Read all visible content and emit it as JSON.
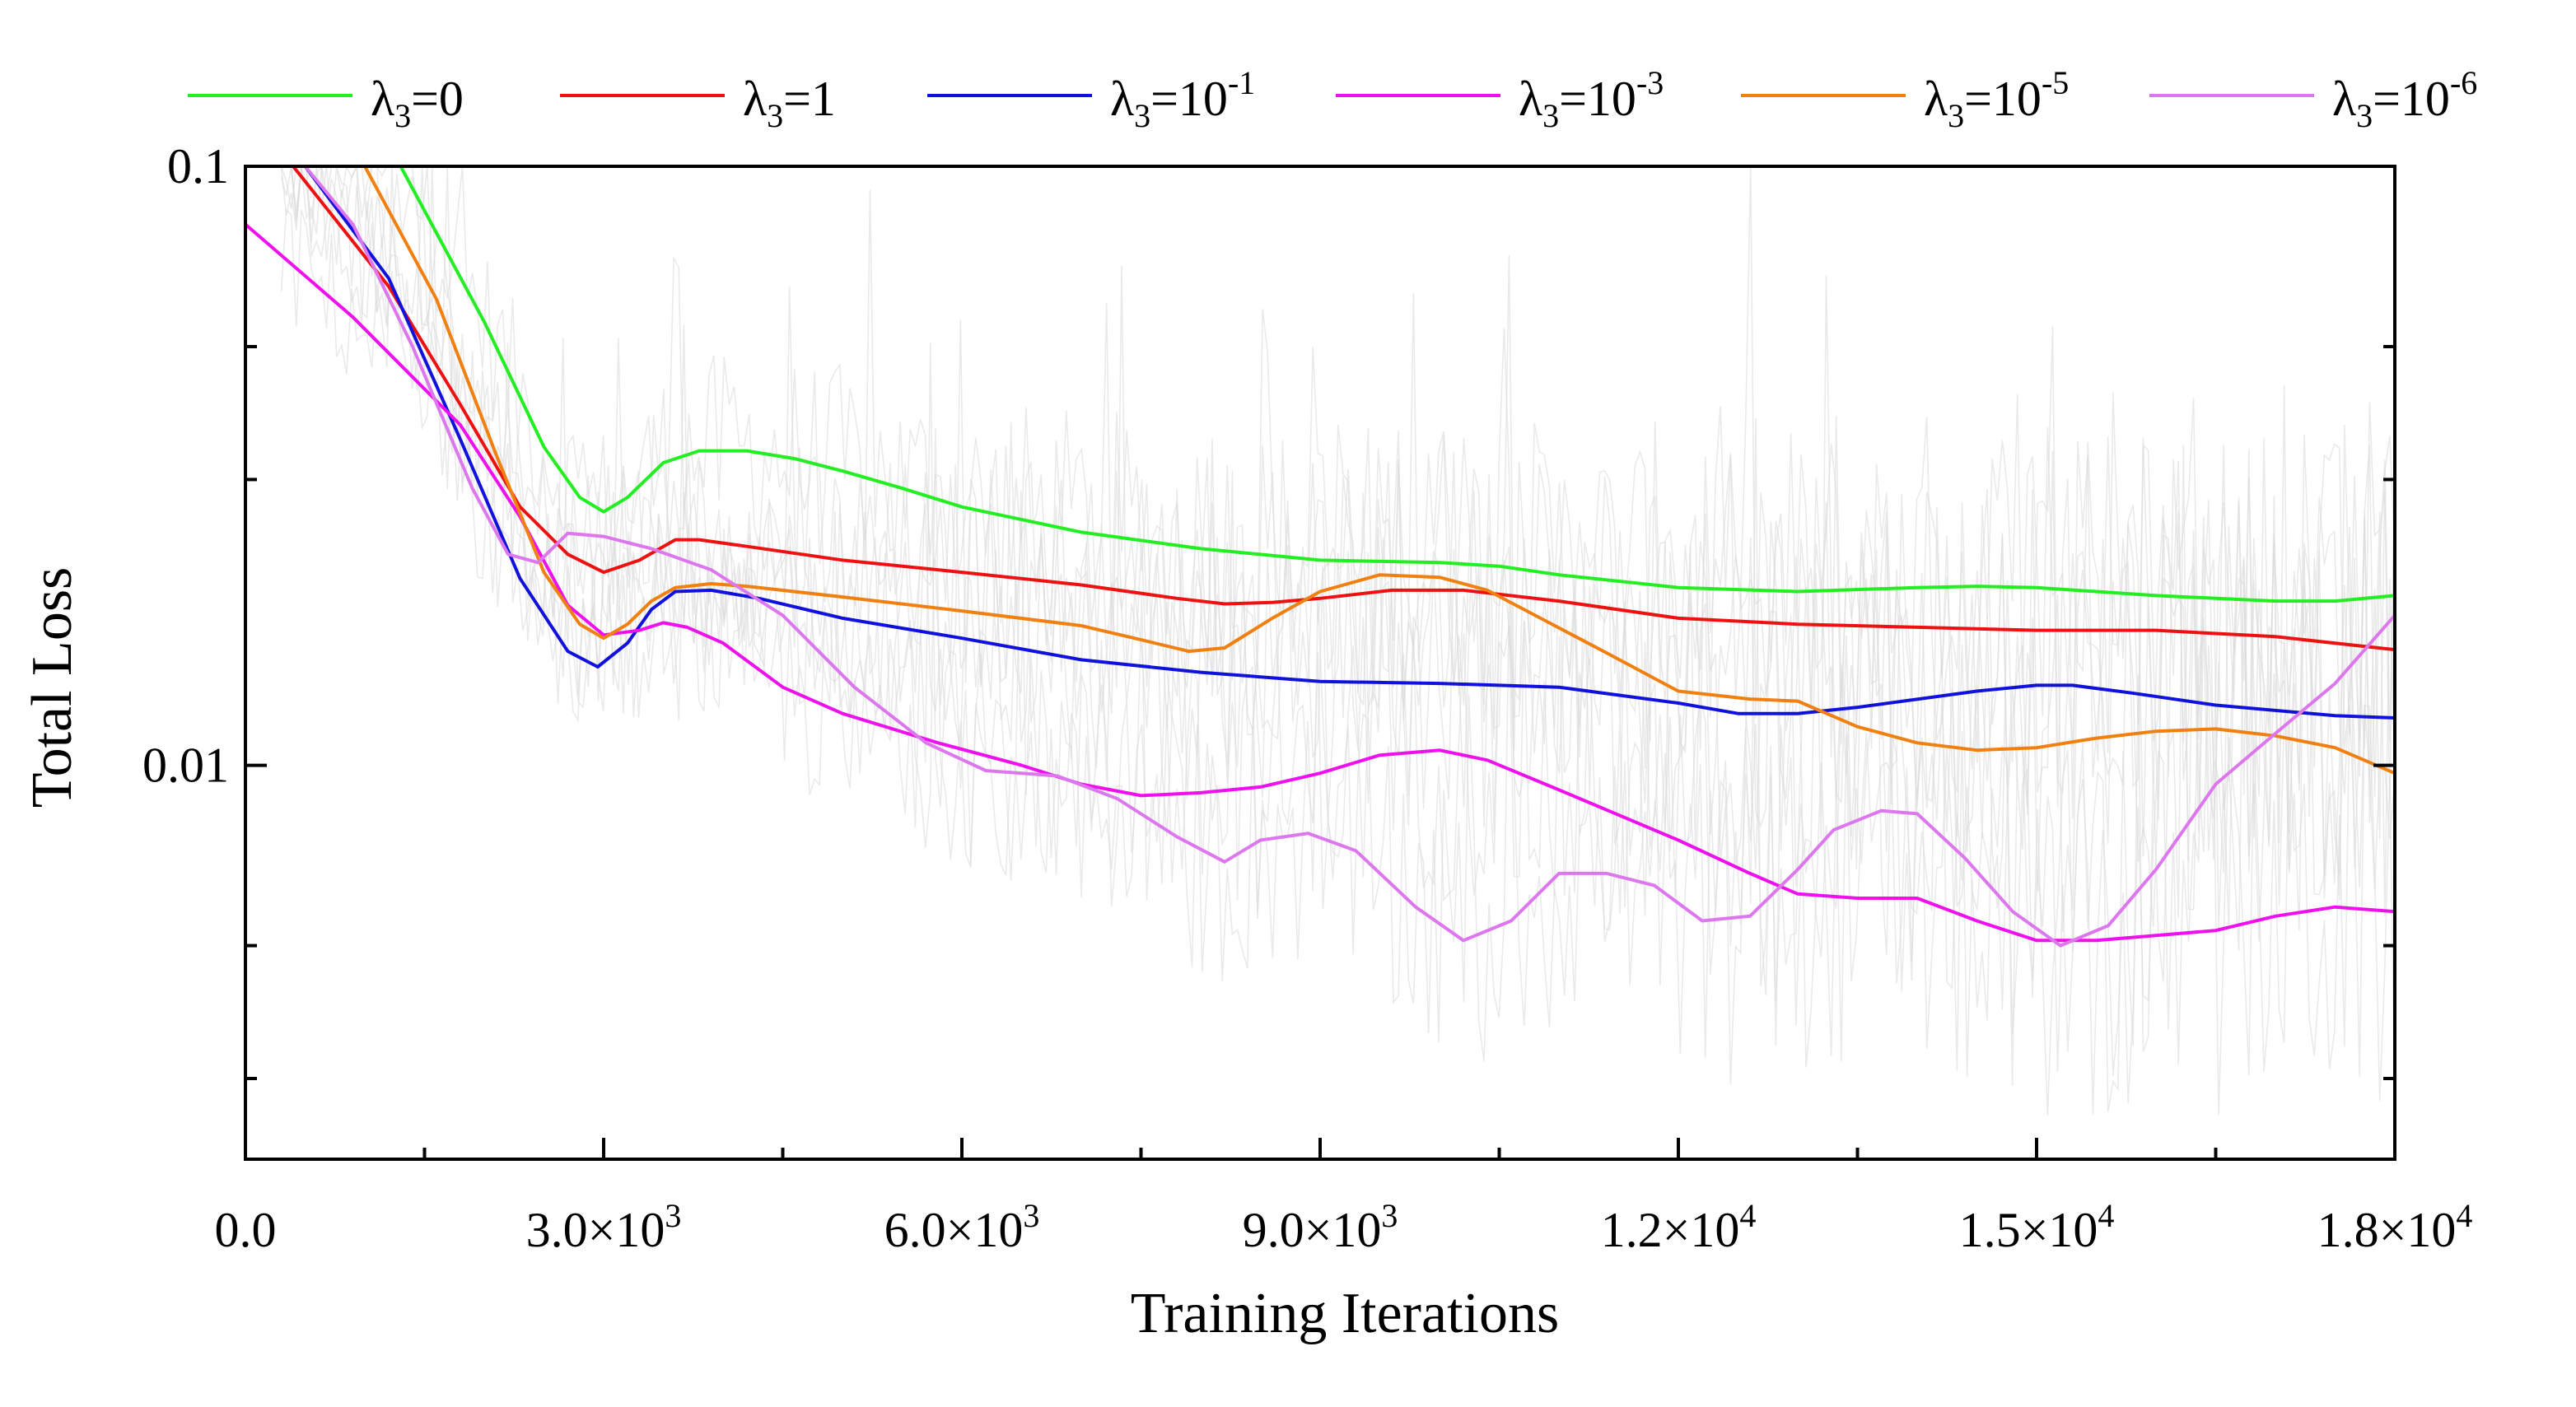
{
  "chart_data": {
    "type": "line",
    "title": "",
    "xlabel": "Training Iterations",
    "ylabel": "Total Loss",
    "xlim": [
      0,
      18000
    ],
    "ylim": [
      0.0022,
      0.1
    ],
    "yscale": "log",
    "grid": false,
    "legend_position": "top",
    "x_ticks": [
      {
        "value": 0,
        "label": "0.0",
        "base": "",
        "exp": ""
      },
      {
        "value": 3000,
        "label": "",
        "base": "3.0×10",
        "exp": "3"
      },
      {
        "value": 6000,
        "label": "",
        "base": "6.0×10",
        "exp": "3"
      },
      {
        "value": 9000,
        "label": "",
        "base": "9.0×10",
        "exp": "3"
      },
      {
        "value": 12000,
        "label": "",
        "base": "1.2×10",
        "exp": "4"
      },
      {
        "value": 15000,
        "label": "",
        "base": "1.5×10",
        "exp": "4"
      },
      {
        "value": 18000,
        "label": "",
        "base": "1.8×10",
        "exp": "4"
      }
    ],
    "y_ticks": [
      {
        "value": 0.1,
        "label": "0.1"
      },
      {
        "value": 0.01,
        "label": "0.01"
      }
    ],
    "series": [
      {
        "name": "λ3=0",
        "legend_base": "λ",
        "legend_sub": "3",
        "legend_rest": "=0",
        "legend_exp": "",
        "color": "#22ee22",
        "x": [
          0,
          1300,
          2000,
          2500,
          2800,
          3000,
          3200,
          3500,
          3800,
          4200,
          4600,
          5000,
          5500,
          6000,
          7000,
          8000,
          9000,
          10000,
          10500,
          11000,
          12000,
          13000,
          14000,
          14500,
          15000,
          16000,
          17000,
          17500,
          18000
        ],
        "values": [
          0.1,
          0.1,
          0.055,
          0.034,
          0.028,
          0.0265,
          0.028,
          0.032,
          0.0335,
          0.0335,
          0.0325,
          0.031,
          0.029,
          0.027,
          0.0245,
          0.023,
          0.022,
          0.0218,
          0.0215,
          0.0208,
          0.0198,
          0.0195,
          0.0198,
          0.0199,
          0.0198,
          0.0192,
          0.0188,
          0.0188,
          0.0192
        ]
      },
      {
        "name": "λ3=1",
        "legend_base": "λ",
        "legend_sub": "3",
        "legend_rest": "=1",
        "legend_exp": "",
        "color": "#ee1111",
        "x": [
          0,
          400,
          1200,
          1800,
          2300,
          2700,
          3000,
          3300,
          3600,
          3800,
          4200,
          5000,
          6000,
          7000,
          7800,
          8200,
          8600,
          9000,
          9600,
          10200,
          11000,
          12000,
          13000,
          14000,
          15000,
          16000,
          17000,
          18000
        ],
        "values": [
          0.1,
          0.1,
          0.063,
          0.04,
          0.027,
          0.0225,
          0.021,
          0.022,
          0.0238,
          0.0238,
          0.0232,
          0.022,
          0.021,
          0.02,
          0.019,
          0.0186,
          0.0187,
          0.019,
          0.0196,
          0.0196,
          0.0188,
          0.0176,
          0.0172,
          0.017,
          0.0168,
          0.0168,
          0.0164,
          0.0156
        ]
      },
      {
        "name": "λ3=10^-1",
        "legend_base": "λ",
        "legend_sub": "3",
        "legend_rest": "=10",
        "legend_exp": "-1",
        "color": "#1111dd",
        "x": [
          0,
          500,
          1200,
          1800,
          2300,
          2700,
          2950,
          3200,
          3400,
          3600,
          3900,
          4300,
          5000,
          6000,
          7000,
          8000,
          9000,
          10000,
          11000,
          12000,
          12500,
          13000,
          13500,
          14500,
          15000,
          15300,
          15800,
          16500,
          17500,
          18000
        ],
        "values": [
          0.1,
          0.1,
          0.065,
          0.035,
          0.0205,
          0.0155,
          0.0146,
          0.016,
          0.0182,
          0.0195,
          0.0196,
          0.019,
          0.0176,
          0.0163,
          0.015,
          0.0143,
          0.0138,
          0.0137,
          0.0135,
          0.0127,
          0.0122,
          0.0122,
          0.0125,
          0.0133,
          0.0136,
          0.0136,
          0.0132,
          0.0126,
          0.0121,
          0.012
        ]
      },
      {
        "name": "λ3=10^-3",
        "legend_base": "λ",
        "legend_sub": "3",
        "legend_rest": "=10",
        "legend_exp": "-3",
        "color": "#ee11ee",
        "x": [
          0,
          900,
          1800,
          2300,
          2700,
          3000,
          3300,
          3500,
          3700,
          4000,
          4500,
          5000,
          5800,
          6500,
          7000,
          7500,
          8000,
          8500,
          9000,
          9500,
          10000,
          10400,
          11000,
          12000,
          12600,
          13000,
          13500,
          14000,
          14500,
          15000,
          15500,
          16000,
          16500,
          17000,
          17500,
          18000
        ],
        "values": [
          0.08,
          0.056,
          0.037,
          0.026,
          0.0185,
          0.0165,
          0.0168,
          0.0173,
          0.017,
          0.016,
          0.0135,
          0.0122,
          0.0109,
          0.01,
          0.0093,
          0.0089,
          0.009,
          0.0092,
          0.0097,
          0.0104,
          0.0106,
          0.0102,
          0.0091,
          0.0075,
          0.0066,
          0.0061,
          0.006,
          0.006,
          0.0055,
          0.0051,
          0.0051,
          0.0052,
          0.0053,
          0.0056,
          0.0058,
          0.0057
        ]
      },
      {
        "name": "λ3=10^-5",
        "legend_base": "λ",
        "legend_sub": "3",
        "legend_rest": "=10",
        "legend_exp": "-5",
        "color": "#f08010",
        "x": [
          0,
          1000,
          1600,
          2100,
          2500,
          2800,
          3000,
          3200,
          3400,
          3600,
          3900,
          4200,
          5000,
          6000,
          7000,
          7500,
          7900,
          8200,
          8600,
          9000,
          9500,
          10000,
          10400,
          10800,
          11400,
          12000,
          12600,
          13000,
          13500,
          14000,
          14500,
          15000,
          15500,
          16000,
          16500,
          17000,
          17500,
          18000
        ],
        "values": [
          0.1,
          0.1,
          0.06,
          0.033,
          0.021,
          0.0172,
          0.0163,
          0.0172,
          0.0188,
          0.0198,
          0.0201,
          0.0199,
          0.0191,
          0.0181,
          0.0171,
          0.0162,
          0.0155,
          0.0157,
          0.0176,
          0.0195,
          0.0208,
          0.0206,
          0.0196,
          0.0178,
          0.0154,
          0.0133,
          0.0129,
          0.0128,
          0.0116,
          0.0109,
          0.0106,
          0.0107,
          0.0111,
          0.0114,
          0.0115,
          0.0112,
          0.0107,
          0.0097
        ]
      },
      {
        "name": "λ3=10^-6",
        "legend_base": "λ",
        "legend_sub": "3",
        "legend_rest": "=10",
        "legend_exp": "-6",
        "color": "#dd77ee",
        "x": [
          0,
          500,
          900,
          1400,
          1900,
          2200,
          2450,
          2700,
          3000,
          3400,
          3900,
          4500,
          5100,
          5700,
          6200,
          6800,
          7300,
          7800,
          8200,
          8500,
          8900,
          9300,
          9800,
          10200,
          10600,
          11000,
          11400,
          11800,
          12200,
          12600,
          13000,
          13300,
          13700,
          14000,
          14400,
          14800,
          15200,
          15600,
          16000,
          16500,
          17000,
          17500,
          18000
        ],
        "values": [
          0.1,
          0.1,
          0.08,
          0.05,
          0.029,
          0.0225,
          0.0218,
          0.0244,
          0.0241,
          0.023,
          0.0212,
          0.0178,
          0.0135,
          0.0109,
          0.0098,
          0.0096,
          0.0088,
          0.0076,
          0.0069,
          0.0075,
          0.0077,
          0.0072,
          0.0058,
          0.0051,
          0.0055,
          0.0066,
          0.0066,
          0.0063,
          0.0055,
          0.0056,
          0.0067,
          0.0078,
          0.0084,
          0.0083,
          0.007,
          0.0057,
          0.005,
          0.0054,
          0.0067,
          0.0093,
          0.0113,
          0.0137,
          0.0178
        ]
      }
    ]
  }
}
